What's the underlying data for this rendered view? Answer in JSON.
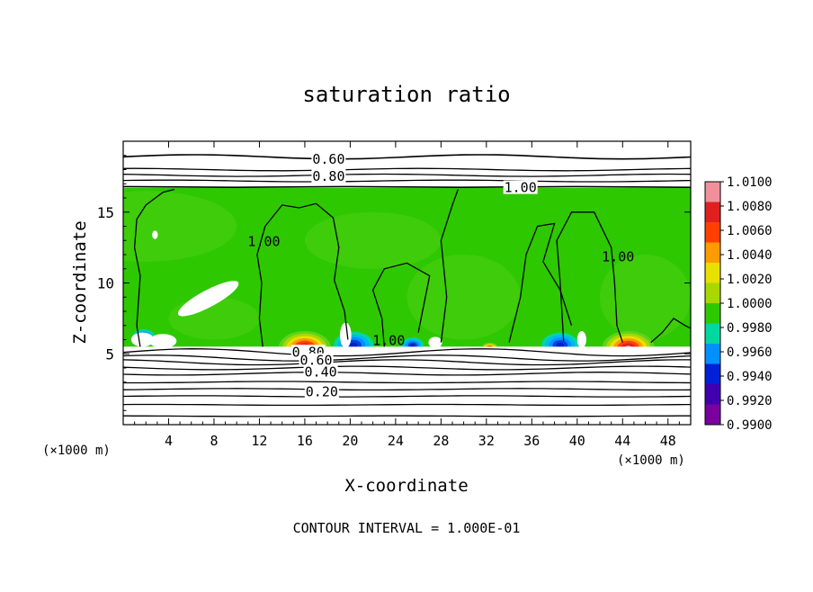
{
  "chart_data": {
    "type": "heatmap",
    "title": "saturation ratio",
    "xlabel": "X-coordinate",
    "ylabel": "Z-coordinate",
    "x_unit": "(×1000 m)",
    "x_unit_right": "(×1000 m)",
    "xlim": [
      0,
      50
    ],
    "ylim": [
      0,
      20
    ],
    "x_ticks": [
      "4",
      "8",
      "12",
      "16",
      "20",
      "24",
      "28",
      "32",
      "36",
      "40",
      "44",
      "48"
    ],
    "y_ticks": [
      "5",
      "10",
      "15"
    ],
    "x_tick_values": [
      4,
      8,
      12,
      16,
      20,
      24,
      28,
      32,
      36,
      40,
      44,
      48
    ],
    "y_tick_values": [
      5,
      10,
      15
    ],
    "footer": "CONTOUR INTERVAL = 1.000E-01",
    "colorbar": {
      "levels": [
        "1.0100",
        "1.0080",
        "1.0060",
        "1.0040",
        "1.0020",
        "1.0000",
        "0.9980",
        "0.9960",
        "0.9940",
        "0.9920",
        "0.9900"
      ],
      "colors": [
        "#f0909a",
        "#e02020",
        "#ff4000",
        "#ff9a00",
        "#e8e000",
        "#a8d800",
        "#2ec800",
        "#00d8a0",
        "#0090ff",
        "#0020d8",
        "#4000b0",
        "#7a00a0"
      ]
    },
    "contour_labels": [
      {
        "text": "0.60",
        "x": 18.1,
        "z": 18.6
      },
      {
        "text": "0.80",
        "x": 18.1,
        "z": 17.4
      },
      {
        "text": "1.00",
        "x": 35.0,
        "z": 16.6
      },
      {
        "text": "1.00",
        "x": 12.4,
        "z": 12.8
      },
      {
        "text": "1.00",
        "x": 43.6,
        "z": 11.7
      },
      {
        "text": "1.00",
        "x": 23.4,
        "z": 5.8
      },
      {
        "text": "0.80",
        "x": 16.3,
        "z": 5.0
      },
      {
        "text": "0.60",
        "x": 17.0,
        "z": 4.4
      },
      {
        "text": "0.40",
        "x": 17.4,
        "z": 3.6
      },
      {
        "text": "0.20",
        "x": 17.5,
        "z": 2.2
      }
    ],
    "field": {
      "base_color": "#2ec800",
      "region_z": [
        5.5,
        16.7
      ],
      "warm_blobs": [
        {
          "x": 16.0,
          "z": 5.4,
          "r": 2.2
        },
        {
          "x": 44.5,
          "z": 5.4,
          "r": 2.2
        },
        {
          "x": 32.3,
          "z": 5.4,
          "r": 0.7
        }
      ],
      "cool_blobs": [
        {
          "x": 20.3,
          "z": 5.6,
          "r": 1.6
        },
        {
          "x": 38.5,
          "z": 5.6,
          "r": 1.5
        },
        {
          "x": 25.5,
          "z": 5.6,
          "r": 0.9
        },
        {
          "x": 1.8,
          "z": 6.2,
          "r": 0.9
        }
      ]
    }
  }
}
